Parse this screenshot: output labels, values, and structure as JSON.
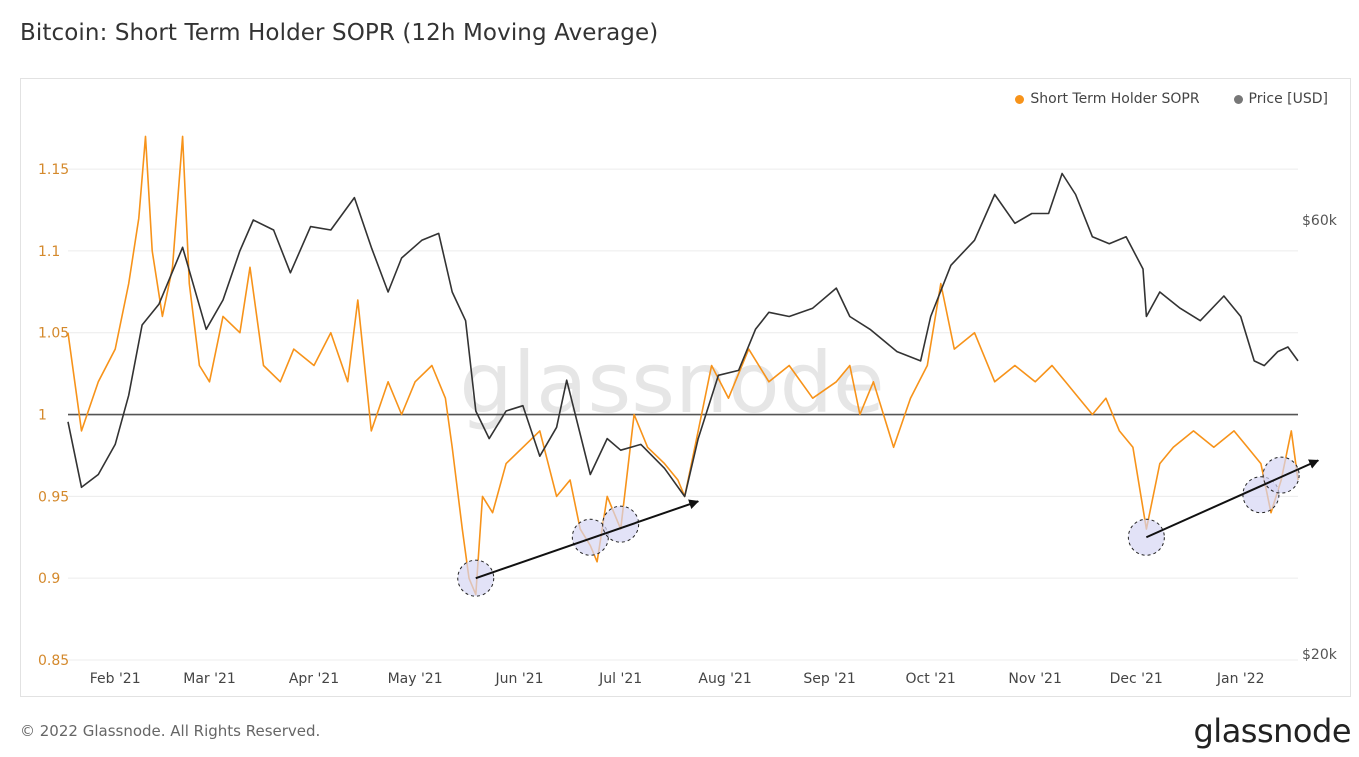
{
  "header": {
    "title": "Bitcoin: Short Term Holder SOPR (12h Moving Average)"
  },
  "footer": {
    "copyright": "© 2022 Glassnode. All Rights Reserved.",
    "logo": "glassnode"
  },
  "watermark": "glassnode",
  "colors": {
    "sopr": "#f7931a",
    "price": "#333333",
    "baseline": "#555555",
    "marker_fill": "#d5d5f3"
  },
  "chart_data": {
    "type": "line",
    "title": "Bitcoin: Short Term Holder SOPR (12h Moving Average)",
    "x_ticks": [
      "Feb '21",
      "Mar '21",
      "Apr '21",
      "May '21",
      "Jun '21",
      "Jul '21",
      "Aug '21",
      "Sep '21",
      "Oct '21",
      "Nov '21",
      "Dec '21",
      "Jan '22"
    ],
    "x_range": [
      "2021-01-18",
      "2022-01-18"
    ],
    "y_left": {
      "ticks": [
        "0.85",
        "0.9",
        "0.95",
        "1",
        "1.05",
        "1.1",
        "1.15"
      ],
      "range": [
        0.85,
        1.18
      ]
    },
    "y_right": {
      "ticks": [
        "$20k",
        "$60k"
      ],
      "scale": "log"
    },
    "legend": {
      "placement": "top-right",
      "entries": [
        "Short Term Holder SOPR",
        "Price [USD]"
      ]
    },
    "baseline": 1.0,
    "series": [
      {
        "name": "Short Term Holder SOPR",
        "axis": "left",
        "x": [
          "2021-01-18",
          "2021-01-22",
          "2021-01-27",
          "2021-02-01",
          "2021-02-05",
          "2021-02-08",
          "2021-02-10",
          "2021-02-12",
          "2021-02-15",
          "2021-02-18",
          "2021-02-21",
          "2021-02-23",
          "2021-02-26",
          "2021-03-01",
          "2021-03-05",
          "2021-03-10",
          "2021-03-13",
          "2021-03-17",
          "2021-03-22",
          "2021-03-26",
          "2021-04-01",
          "2021-04-06",
          "2021-04-11",
          "2021-04-14",
          "2021-04-18",
          "2021-04-23",
          "2021-04-27",
          "2021-05-01",
          "2021-05-06",
          "2021-05-10",
          "2021-05-12",
          "2021-05-15",
          "2021-05-17",
          "2021-05-19",
          "2021-05-21",
          "2021-05-24",
          "2021-05-28",
          "2021-06-02",
          "2021-06-07",
          "2021-06-12",
          "2021-06-16",
          "2021-06-19",
          "2021-06-22",
          "2021-06-24",
          "2021-06-27",
          "2021-07-01",
          "2021-07-05",
          "2021-07-09",
          "2021-07-14",
          "2021-07-18",
          "2021-07-20",
          "2021-07-24",
          "2021-07-28",
          "2021-08-02",
          "2021-08-08",
          "2021-08-14",
          "2021-08-20",
          "2021-08-27",
          "2021-09-03",
          "2021-09-07",
          "2021-09-10",
          "2021-09-14",
          "2021-09-20",
          "2021-09-25",
          "2021-09-30",
          "2021-10-04",
          "2021-10-08",
          "2021-10-14",
          "2021-10-20",
          "2021-10-26",
          "2021-11-01",
          "2021-11-06",
          "2021-11-10",
          "2021-11-14",
          "2021-11-18",
          "2021-11-22",
          "2021-11-26",
          "2021-11-30",
          "2021-12-04",
          "2021-12-08",
          "2021-12-12",
          "2021-12-18",
          "2021-12-24",
          "2021-12-30",
          "2022-01-03",
          "2022-01-07",
          "2022-01-10",
          "2022-01-13",
          "2022-01-16",
          "2022-01-18"
        ],
        "values": [
          1.05,
          0.99,
          1.02,
          1.04,
          1.08,
          1.12,
          1.17,
          1.1,
          1.06,
          1.09,
          1.17,
          1.08,
          1.03,
          1.02,
          1.06,
          1.05,
          1.09,
          1.03,
          1.02,
          1.04,
          1.03,
          1.05,
          1.02,
          1.07,
          0.99,
          1.02,
          1.0,
          1.02,
          1.03,
          1.01,
          0.98,
          0.93,
          0.9,
          0.89,
          0.95,
          0.94,
          0.97,
          0.98,
          0.99,
          0.95,
          0.96,
          0.93,
          0.92,
          0.91,
          0.95,
          0.93,
          1.0,
          0.98,
          0.97,
          0.96,
          0.95,
          0.99,
          1.03,
          1.01,
          1.04,
          1.02,
          1.03,
          1.01,
          1.02,
          1.03,
          1.0,
          1.02,
          0.98,
          1.01,
          1.03,
          1.08,
          1.04,
          1.05,
          1.02,
          1.03,
          1.02,
          1.03,
          1.02,
          1.01,
          1.0,
          1.01,
          0.99,
          0.98,
          0.93,
          0.97,
          0.98,
          0.99,
          0.98,
          0.99,
          0.98,
          0.97,
          0.94,
          0.96,
          0.99,
          0.96
        ]
      },
      {
        "name": "Price [USD]",
        "axis": "right",
        "x": [
          "2021-01-18",
          "2021-01-22",
          "2021-01-27",
          "2021-02-01",
          "2021-02-05",
          "2021-02-09",
          "2021-02-14",
          "2021-02-21",
          "2021-02-28",
          "2021-03-05",
          "2021-03-10",
          "2021-03-14",
          "2021-03-20",
          "2021-03-25",
          "2021-03-31",
          "2021-04-06",
          "2021-04-13",
          "2021-04-18",
          "2021-04-23",
          "2021-04-27",
          "2021-05-03",
          "2021-05-08",
          "2021-05-12",
          "2021-05-16",
          "2021-05-19",
          "2021-05-23",
          "2021-05-28",
          "2021-06-02",
          "2021-06-07",
          "2021-06-12",
          "2021-06-15",
          "2021-06-22",
          "2021-06-27",
          "2021-07-01",
          "2021-07-07",
          "2021-07-14",
          "2021-07-20",
          "2021-07-24",
          "2021-07-30",
          "2021-08-05",
          "2021-08-10",
          "2021-08-14",
          "2021-08-20",
          "2021-08-27",
          "2021-09-03",
          "2021-09-07",
          "2021-09-13",
          "2021-09-21",
          "2021-09-28",
          "2021-10-01",
          "2021-10-07",
          "2021-10-14",
          "2021-10-20",
          "2021-10-26",
          "2021-10-31",
          "2021-11-05",
          "2021-11-09",
          "2021-11-13",
          "2021-11-18",
          "2021-11-23",
          "2021-11-28",
          "2021-12-03",
          "2021-12-04",
          "2021-12-08",
          "2021-12-14",
          "2021-12-20",
          "2021-12-27",
          "2022-01-01",
          "2022-01-05",
          "2022-01-08",
          "2022-01-12",
          "2022-01-15",
          "2022-01-18"
        ],
        "values": [
          36000,
          30500,
          31500,
          34000,
          38500,
          46000,
          48500,
          56000,
          45500,
          49000,
          55500,
          60000,
          58500,
          52500,
          59000,
          58500,
          63500,
          56000,
          50000,
          54500,
          57000,
          58000,
          50000,
          46500,
          37000,
          34500,
          37000,
          37500,
          33000,
          35500,
          40000,
          31500,
          34500,
          33500,
          34000,
          32000,
          29800,
          34500,
          40500,
          41000,
          45500,
          47500,
          47000,
          48000,
          50500,
          47000,
          45500,
          43000,
          42000,
          47000,
          53500,
          57000,
          64000,
          59500,
          61000,
          61000,
          67500,
          64000,
          57500,
          56500,
          57500,
          53000,
          47000,
          50000,
          48000,
          46500,
          49500,
          47000,
          42000,
          41500,
          43000,
          43500,
          42000
        ]
      }
    ],
    "annotations": [
      {
        "type": "circle",
        "x": "2021-05-19",
        "y": 0.9
      },
      {
        "type": "circle",
        "x": "2021-06-22",
        "y": 0.925
      },
      {
        "type": "circle",
        "x": "2021-07-01",
        "y": 0.933
      },
      {
        "type": "circle",
        "x": "2021-12-04",
        "y": 0.925
      },
      {
        "type": "circle",
        "x": "2022-01-07",
        "y": 0.951
      },
      {
        "type": "circle",
        "x": "2022-01-13",
        "y": 0.963
      },
      {
        "type": "arrow",
        "from": [
          "2021-05-19",
          0.9
        ],
        "to": [
          "2021-07-24",
          0.947
        ]
      },
      {
        "type": "arrow",
        "from": [
          "2021-12-04",
          0.925
        ],
        "to": [
          "2022-01-24",
          0.972
        ]
      }
    ]
  }
}
